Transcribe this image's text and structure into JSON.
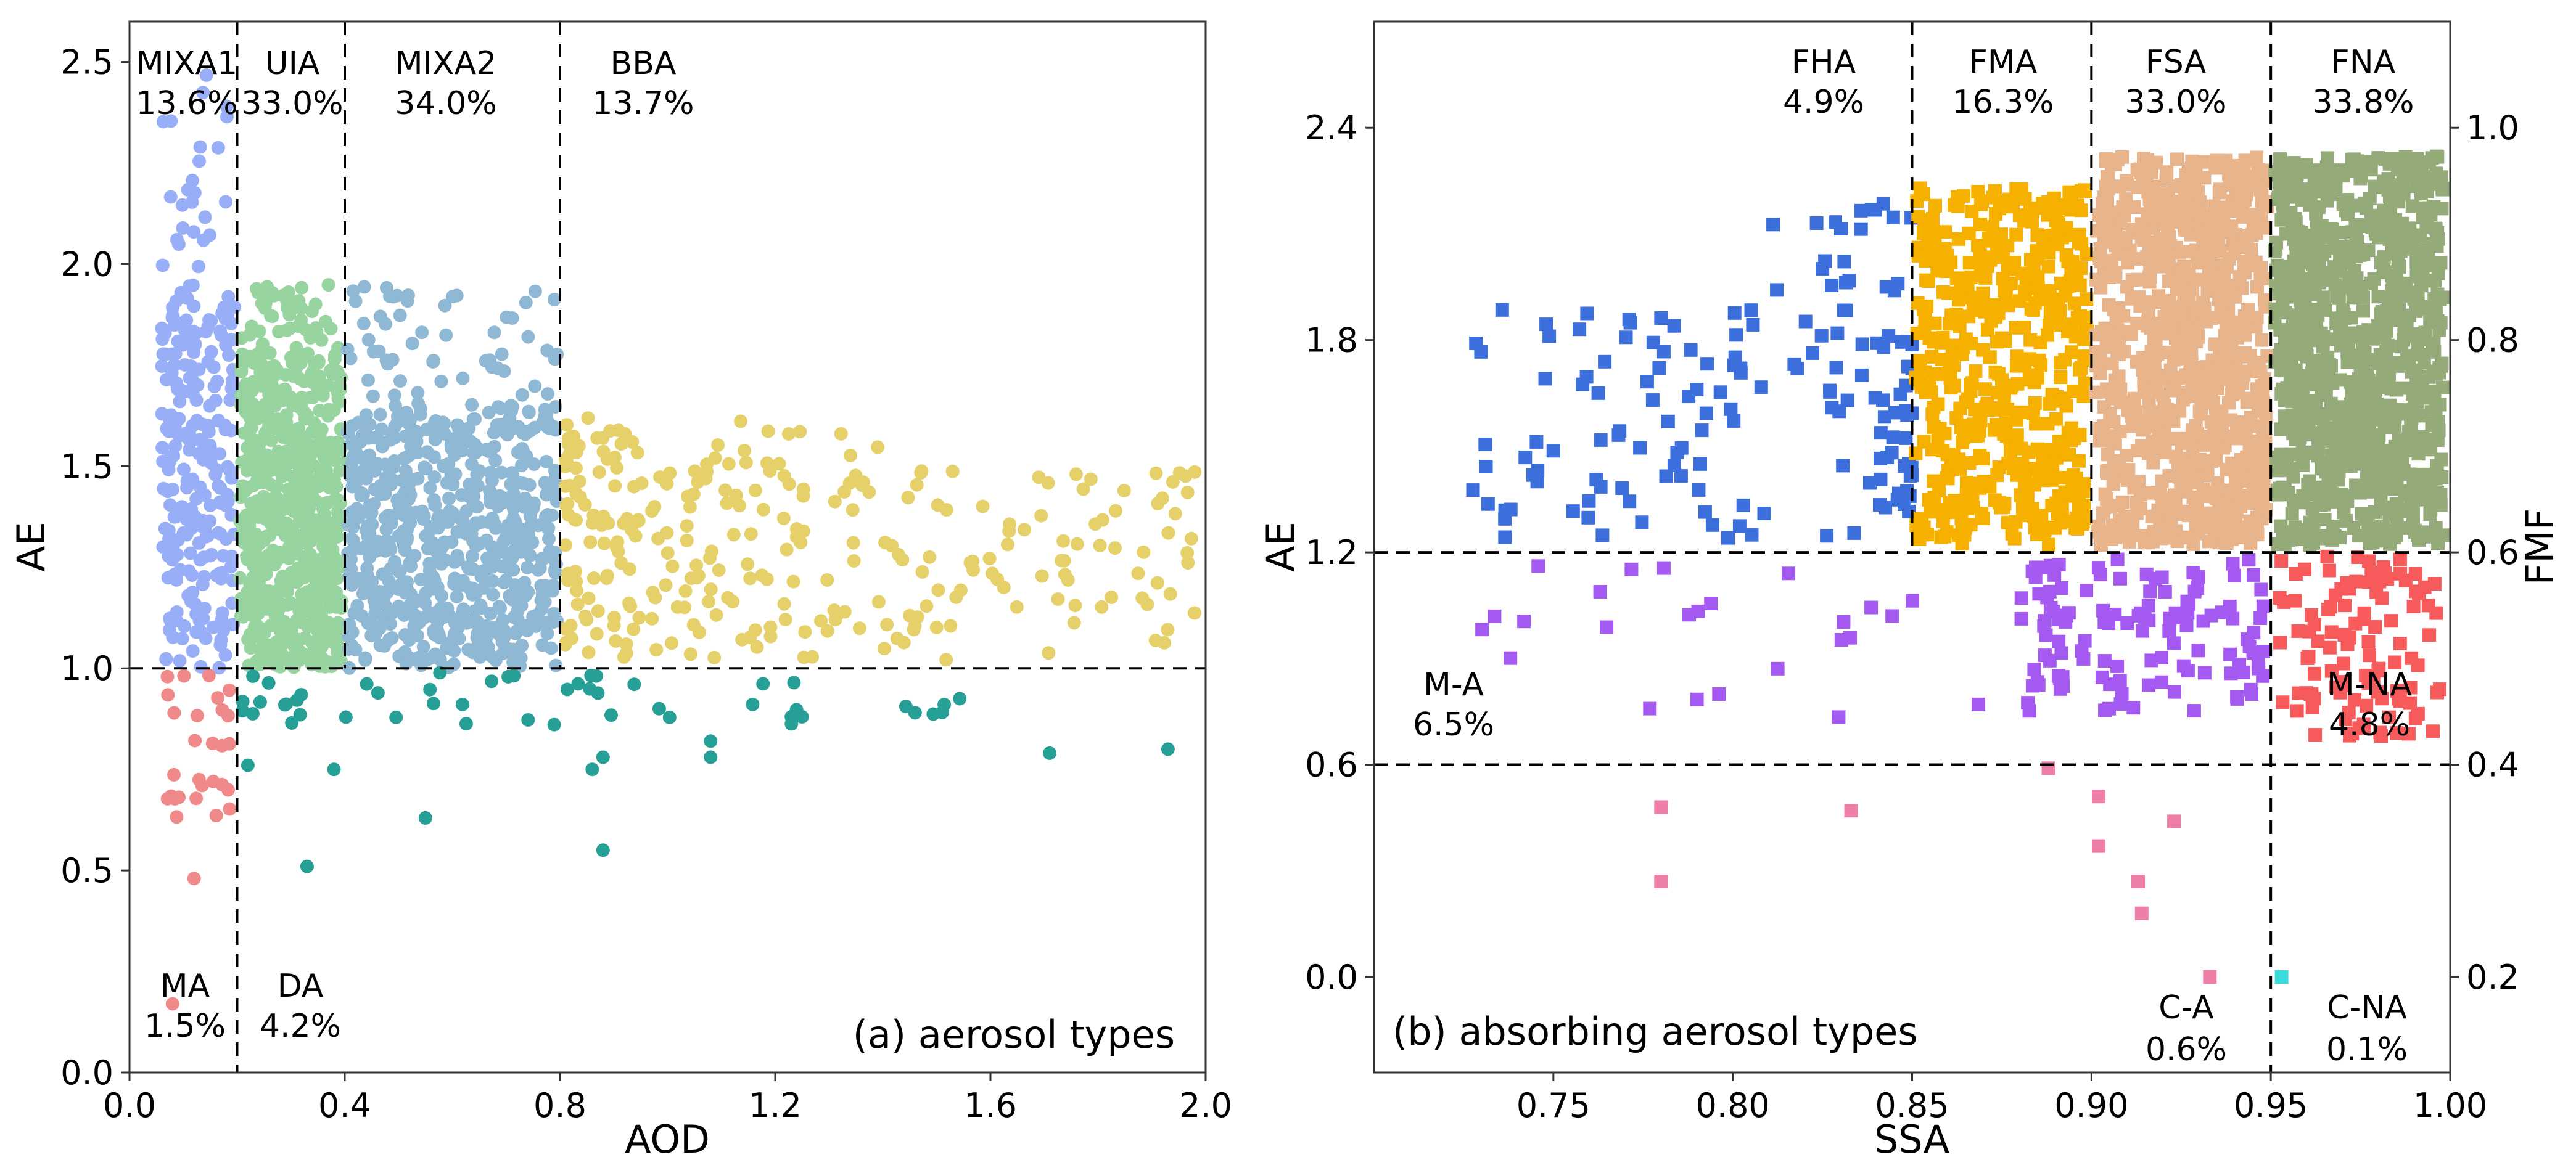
{
  "colors": {
    "MA": "#f08a8a",
    "MIXA1": "#98aef6",
    "UIA": "#98d4a0",
    "MIXA2": "#8fb8d4",
    "BBA": "#e6d06a",
    "DA": "#26a096",
    "FHA": "#3c6fdc",
    "FMA": "#f5b000",
    "FSA": "#e8b48c",
    "FNA": "#94aa78",
    "M-A": "#a45af0",
    "M-NA": "#f75a5a",
    "C-A": "#ec7ea8",
    "C-NA": "#3cdcdc"
  },
  "chart_data": [
    {
      "id": "a",
      "type": "scatter",
      "caption": "(a) aerosol types",
      "xlabel": "AOD",
      "ylabel": "AE",
      "xlim": [
        0.0,
        2.0
      ],
      "ylim": [
        0.0,
        2.6
      ],
      "xticks": [
        "0.0",
        "0.4",
        "0.8",
        "1.2",
        "1.6",
        "2.0"
      ],
      "yticks": [
        "0.0",
        "0.5",
        "1.0",
        "1.5",
        "2.0",
        "2.5"
      ],
      "thresholds": {
        "aod": [
          0.2,
          0.4,
          0.8
        ],
        "ae": 1.0
      },
      "regions": [
        {
          "name": "MIXA1",
          "percent": "13.6%"
        },
        {
          "name": "UIA",
          "percent": "33.0%"
        },
        {
          "name": "MIXA2",
          "percent": "34.0%"
        },
        {
          "name": "BBA",
          "percent": "13.7%"
        },
        {
          "name": "MA",
          "percent": "1.5%"
        },
        {
          "name": "DA",
          "percent": "4.2%"
        }
      ],
      "series": [
        {
          "name": "MIXA1",
          "approx_count": 260,
          "aod_range": [
            0.05,
            0.2
          ],
          "ae_range": [
            1.0,
            2.5
          ],
          "note": "dense 1.0-1.92, sparse tail to 2.5"
        },
        {
          "name": "UIA",
          "approx_count": 650,
          "aod_range": [
            0.2,
            0.4
          ],
          "ae_range": [
            1.0,
            1.95
          ]
        },
        {
          "name": "MIXA2",
          "approx_count": 700,
          "aod_range": [
            0.4,
            0.8
          ],
          "ae_range": [
            1.0,
            1.95
          ]
        },
        {
          "name": "BBA",
          "approx_count": 290,
          "aod_range": [
            0.8,
            2.0
          ],
          "ae_range": [
            1.0,
            1.63
          ],
          "note": "density decreases with AOD"
        },
        {
          "name": "MA",
          "approx_count": 30,
          "aod_range": [
            0.05,
            0.2
          ],
          "ae_range": [
            0.17,
            1.0
          ]
        },
        {
          "name": "DA",
          "approx_count": 60,
          "aod_range": [
            0.2,
            1.95
          ],
          "ae_range": [
            0.5,
            1.0
          ],
          "points": [
            [
              0.33,
              0.51
            ],
            [
              0.55,
              0.63
            ],
            [
              0.88,
              0.55
            ],
            [
              0.22,
              0.76
            ],
            [
              0.38,
              0.75
            ],
            [
              0.86,
              0.75
            ],
            [
              0.88,
              0.78
            ],
            [
              1.08,
              0.78
            ],
            [
              1.08,
              0.82
            ],
            [
              1.23,
              0.88
            ],
            [
              1.25,
              0.88
            ],
            [
              1.46,
              0.89
            ],
            [
              1.71,
              0.79
            ],
            [
              1.93,
              0.8
            ]
          ]
        }
      ]
    },
    {
      "id": "b",
      "type": "scatter",
      "caption": "(b) absorbing aerosol types",
      "xlabel": "SSA",
      "ylabel": "AE",
      "y2label": "FMF",
      "xlim": [
        0.7,
        1.0
      ],
      "ylim": [
        -0.27,
        2.7
      ],
      "xticks": [
        "0.75",
        "0.80",
        "0.85",
        "0.90",
        "0.95",
        "1.00"
      ],
      "yticks": [
        "0.0",
        "0.6",
        "1.2",
        "1.8",
        "2.4"
      ],
      "y2ticks": [
        "0.2",
        "0.4",
        "0.6",
        "0.8",
        "1.0"
      ],
      "thresholds": {
        "ssa": [
          0.85,
          0.9,
          0.95
        ],
        "ae": [
          0.6,
          1.2
        ]
      },
      "regions": [
        {
          "name": "FHA",
          "percent": "4.9%"
        },
        {
          "name": "FMA",
          "percent": "16.3%"
        },
        {
          "name": "FSA",
          "percent": "33.0%"
        },
        {
          "name": "FNA",
          "percent": "33.8%"
        },
        {
          "name": "M-A",
          "percent": "6.5%"
        },
        {
          "name": "M-NA",
          "percent": "4.8%"
        },
        {
          "name": "C-A",
          "percent": "0.6%"
        },
        {
          "name": "C-NA",
          "percent": "0.1%"
        }
      ],
      "series": [
        {
          "name": "FHA",
          "approx_count": 160,
          "ssa_range": [
            0.72,
            0.85
          ],
          "ae_range": [
            1.2,
            2.22
          ],
          "note": "denser toward SSA 0.85"
        },
        {
          "name": "FMA",
          "approx_count": 500,
          "ssa_range": [
            0.85,
            0.9
          ],
          "ae_range": [
            1.2,
            2.24
          ]
        },
        {
          "name": "FSA",
          "approx_count": 900,
          "ssa_range": [
            0.9,
            0.95
          ],
          "ae_range": [
            1.2,
            2.32
          ]
        },
        {
          "name": "FNA",
          "approx_count": 900,
          "ssa_range": [
            0.95,
            1.0
          ],
          "ae_range": [
            1.2,
            2.32
          ]
        },
        {
          "name": "M-A",
          "approx_count": 150,
          "ssa_range": [
            0.72,
            0.95
          ],
          "ae_range": [
            0.6,
            1.2
          ],
          "note": "dense for SSA 0.88-0.95"
        },
        {
          "name": "M-NA",
          "approx_count": 110,
          "ssa_range": [
            0.95,
            1.0
          ],
          "ae_range": [
            0.65,
            1.2
          ]
        },
        {
          "name": "C-A",
          "approx_count": 12,
          "ssa_range": [
            0.78,
            0.94
          ],
          "ae_range": [
            0.0,
            0.6
          ],
          "points": [
            [
              0.78,
              0.48
            ],
            [
              0.78,
              0.27
            ],
            [
              0.833,
              0.47
            ],
            [
              0.888,
              0.59
            ],
            [
              0.902,
              0.51
            ],
            [
              0.902,
              0.37
            ],
            [
              0.913,
              0.27
            ],
            [
              0.914,
              0.18
            ],
            [
              0.923,
              0.44
            ],
            [
              0.933,
              0.0
            ]
          ]
        },
        {
          "name": "C-NA",
          "approx_count": 1,
          "ssa_range": [
            0.953,
            0.953
          ],
          "ae_range": [
            0.0,
            0.0
          ],
          "points": [
            [
              0.953,
              0.0
            ]
          ]
        }
      ]
    }
  ]
}
